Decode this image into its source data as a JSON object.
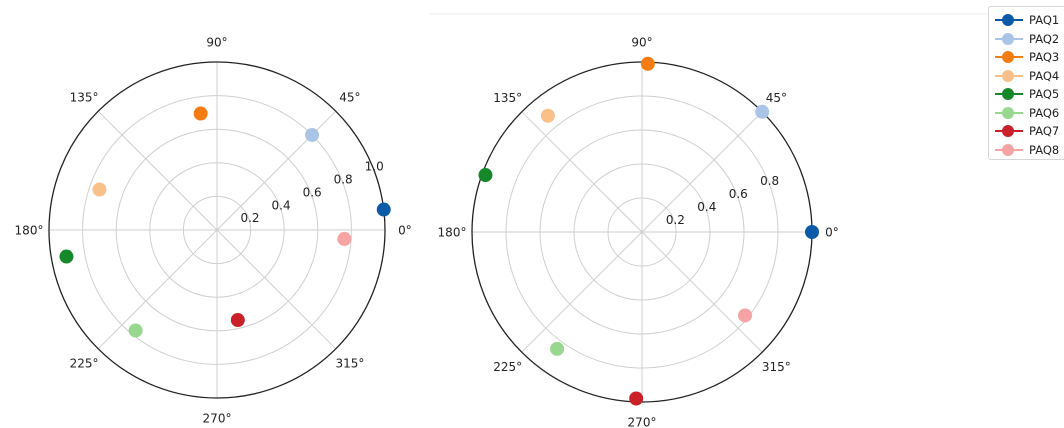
{
  "chart_data": [
    {
      "type": "scatter",
      "projection": "polar",
      "theta_ticks": [
        "0°",
        "45°",
        "90°",
        "135°",
        "180°",
        "225°",
        "270°",
        "315°"
      ],
      "r_ticks": [
        "0.2",
        "0.4",
        "0.6",
        "0.8",
        "1.0"
      ],
      "rlim": [
        0,
        1.0
      ],
      "grid": true,
      "series": [
        {
          "name": "PAQ1",
          "theta": 7,
          "r": 1.0
        },
        {
          "name": "PAQ2",
          "theta": 45,
          "r": 0.8
        },
        {
          "name": "PAQ3",
          "theta": 98,
          "r": 0.7
        },
        {
          "name": "PAQ4",
          "theta": 161,
          "r": 0.74
        },
        {
          "name": "PAQ5",
          "theta": 190,
          "r": 0.91
        },
        {
          "name": "PAQ6",
          "theta": 231,
          "r": 0.77
        },
        {
          "name": "PAQ7",
          "theta": 283,
          "r": 0.55
        },
        {
          "name": "PAQ8",
          "theta": 356,
          "r": 0.76
        }
      ]
    },
    {
      "type": "scatter",
      "projection": "polar",
      "theta_ticks": [
        "0°",
        "45°",
        "90°",
        "135°",
        "180°",
        "225°",
        "270°",
        "315°"
      ],
      "r_ticks": [
        "0.2",
        "0.4",
        "0.6",
        "0.8"
      ],
      "rlim": [
        0,
        1.0
      ],
      "grid": true,
      "series": [
        {
          "name": "PAQ1",
          "theta": 0,
          "r": 1.0
        },
        {
          "name": "PAQ2",
          "theta": 45,
          "r": 1.0
        },
        {
          "name": "PAQ3",
          "theta": 88,
          "r": 0.99
        },
        {
          "name": "PAQ4",
          "theta": 129,
          "r": 0.88
        },
        {
          "name": "PAQ5",
          "theta": 160,
          "r": 0.98
        },
        {
          "name": "PAQ6",
          "theta": 234,
          "r": 0.85
        },
        {
          "name": "PAQ7",
          "theta": 268,
          "r": 0.98
        },
        {
          "name": "PAQ8",
          "theta": 321,
          "r": 0.78
        }
      ]
    }
  ],
  "legend": {
    "placement": "top-right",
    "items": [
      {
        "label": "PAQ1",
        "color": "#0b5aa7"
      },
      {
        "label": "PAQ2",
        "color": "#a9c4e6"
      },
      {
        "label": "PAQ3",
        "color": "#f47c12"
      },
      {
        "label": "PAQ4",
        "color": "#f9c08a"
      },
      {
        "label": "PAQ5",
        "color": "#17882a"
      },
      {
        "label": "PAQ6",
        "color": "#98d88e"
      },
      {
        "label": "PAQ7",
        "color": "#c9202a"
      },
      {
        "label": "PAQ8",
        "color": "#f5a3a3"
      }
    ]
  }
}
